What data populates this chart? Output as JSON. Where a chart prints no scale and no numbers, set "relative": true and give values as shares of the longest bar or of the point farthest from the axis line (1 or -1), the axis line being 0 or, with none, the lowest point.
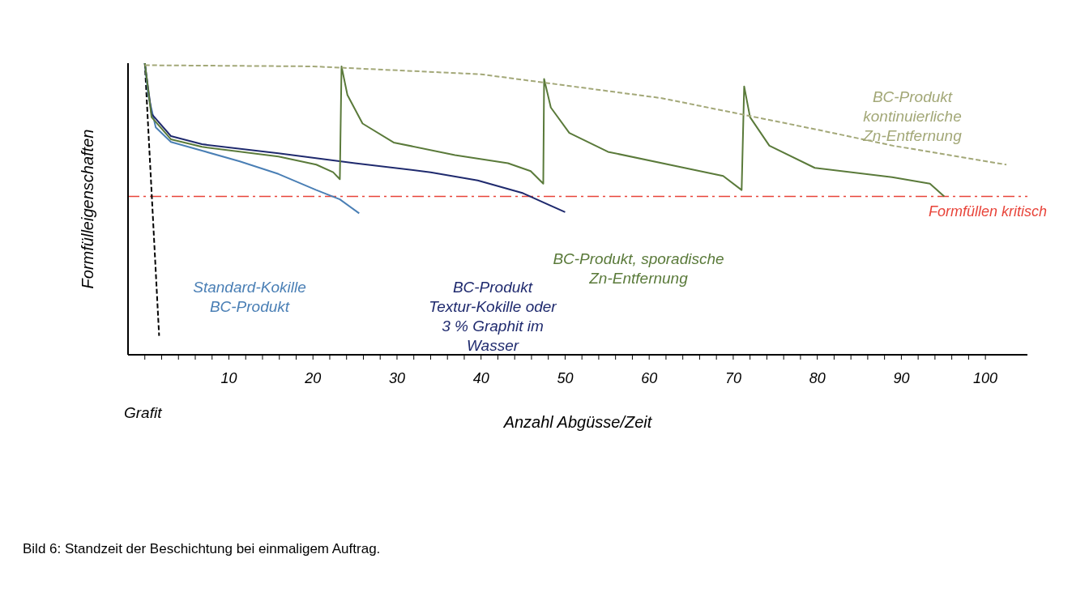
{
  "chart_data": {
    "type": "line",
    "relative": true,
    "xlabel": "Anzahl Abgüsse/Zeit",
    "ylabel": "Formfülleigenschaften",
    "annotations": [
      "Bild 6: Standzeit der Beschichtung bei einmaligem Auftrag."
    ],
    "xlim": [
      -2,
      105
    ],
    "xticks": [
      {
        "value": 0,
        "label": null
      },
      {
        "value": 2,
        "label": null
      },
      {
        "value": 4,
        "label": null
      },
      {
        "value": 6,
        "label": null
      },
      {
        "value": 8,
        "label": null
      },
      10,
      {
        "value": 12,
        "label": null
      },
      {
        "value": 14,
        "label": null
      },
      {
        "value": 16,
        "label": null
      },
      {
        "value": 18,
        "label": null
      },
      20,
      {
        "value": 22,
        "label": null
      },
      {
        "value": 24,
        "label": null
      },
      {
        "value": 26,
        "label": null
      },
      {
        "value": 28,
        "label": null
      },
      30,
      {
        "value": 32,
        "label": null
      },
      {
        "value": 34,
        "label": null
      },
      {
        "value": 36,
        "label": null
      },
      {
        "value": 38,
        "label": null
      },
      40,
      {
        "value": 42,
        "label": null
      },
      {
        "value": 44,
        "label": null
      },
      {
        "value": 46,
        "label": null
      },
      {
        "value": 48,
        "label": null
      },
      50,
      {
        "value": 52,
        "label": null
      },
      {
        "value": 54,
        "label": null
      },
      {
        "value": 56,
        "label": null
      },
      {
        "value": 58,
        "label": null
      },
      60,
      {
        "value": 62,
        "label": null
      },
      {
        "value": 64,
        "label": null
      },
      {
        "value": 66,
        "label": null
      },
      {
        "value": 68,
        "label": null
      },
      70,
      {
        "value": 72,
        "label": null
      },
      {
        "value": 74,
        "label": null
      },
      {
        "value": 76,
        "label": null
      },
      {
        "value": 78,
        "label": null
      },
      80,
      {
        "value": 82,
        "label": null
      },
      {
        "value": 84,
        "label": null
      },
      {
        "value": 86,
        "label": null
      },
      {
        "value": 88,
        "label": null
      },
      90,
      {
        "value": 92,
        "label": null
      },
      {
        "value": 94,
        "label": null
      },
      {
        "value": 96,
        "label": null
      },
      {
        "value": 98,
        "label": null
      },
      100
    ],
    "marker": "none",
    "ref_lines": [
      {
        "axis": "y",
        "value": 0.543,
        "label": "Formfüllen kritisch",
        "color": "#e8443a",
        "line_style": "dashed"
      }
    ],
    "series": [
      {
        "name": "Grafit",
        "color": "#000000",
        "line_style": "dashed",
        "x": [
          0,
          1.7
        ],
        "values": [
          1,
          0.065
        ]
      },
      {
        "name": "Standard-Kokille\nBC-Produkt",
        "color": "#4a7fb5",
        "line_style": "solid",
        "x": [
          0,
          0.4,
          1.3,
          3.1,
          6.8,
          11.3,
          15.9,
          20.4,
          23.2,
          25.5
        ],
        "values": [
          1,
          0.89,
          0.78,
          0.73,
          0.7,
          0.663,
          0.62,
          0.565,
          0.533,
          0.485
        ]
      },
      {
        "name": "BC-Produkt\nTextur-Kokille oder\n3 % Graphit im\nWasser",
        "color": "#1f2a6e",
        "line_style": "solid",
        "x": [
          0,
          0.8,
          3.1,
          6.8,
          15.9,
          25,
          34,
          39.6,
          45,
          50
        ],
        "values": [
          1,
          0.826,
          0.75,
          0.722,
          0.691,
          0.657,
          0.626,
          0.598,
          0.554,
          0.489
        ]
      },
      {
        "name": "BC-Produkt, sporadische\nZn-Entfernung",
        "color": "#5a7a3a",
        "line_style": "solid",
        "x": [
          0,
          0.8,
          3.1,
          6.8,
          15.9,
          20.4,
          22.4,
          23.2,
          23.4,
          24.1,
          25.9,
          29.6,
          36.9,
          43.2,
          45.9,
          47.4,
          47.5,
          48.3,
          50.5,
          55.1,
          64.2,
          68.8,
          71,
          71.3,
          72,
          74.3,
          79.7,
          88.9,
          93.4,
          95.1
        ],
        "values": [
          1,
          0.815,
          0.739,
          0.713,
          0.68,
          0.652,
          0.626,
          0.602,
          0.989,
          0.891,
          0.793,
          0.728,
          0.685,
          0.657,
          0.63,
          0.587,
          0.946,
          0.848,
          0.761,
          0.696,
          0.641,
          0.613,
          0.565,
          0.92,
          0.815,
          0.717,
          0.641,
          0.609,
          0.587,
          0.543
        ]
      },
      {
        "name": "BC-Produkt\nkontinuierliche\nZn-Entfernung",
        "color": "#a3a878",
        "line_style": "dashed",
        "x": [
          0,
          20,
          40,
          61.5,
          80,
          89,
          102.5
        ],
        "values": [
          0.993,
          0.989,
          0.962,
          0.88,
          0.772,
          0.717,
          0.652
        ]
      }
    ]
  }
}
